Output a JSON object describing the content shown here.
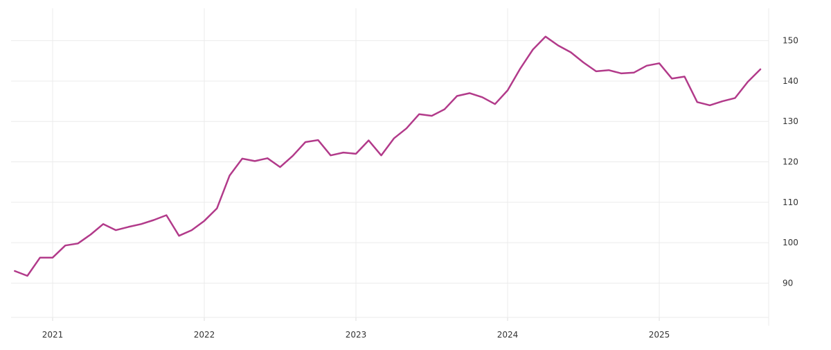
{
  "chart_data": {
    "type": "line",
    "title": "",
    "xlabel": "",
    "ylabel": "",
    "x_tick_labels": [
      "2021",
      "2022",
      "2023",
      "2024",
      "2025"
    ],
    "y_ticks": [
      90,
      100,
      110,
      120,
      130,
      140,
      150
    ],
    "y_axis_side": "right",
    "ylim": [
      81.5,
      158
    ],
    "xlim": [
      "2020-10",
      "2025-09"
    ],
    "grid": true,
    "colors": {
      "line": "#b23a8a",
      "grid": "#ebebeb",
      "axis": "#dddddd"
    },
    "series": [
      {
        "x": [
          "2020-10",
          "2020-11",
          "2020-12",
          "2021-01",
          "2021-02",
          "2021-03",
          "2021-04",
          "2021-05",
          "2021-06",
          "2021-07",
          "2021-08",
          "2021-09",
          "2021-10",
          "2021-11",
          "2021-12",
          "2022-01",
          "2022-02",
          "2022-03",
          "2022-04",
          "2022-05",
          "2022-06",
          "2022-07",
          "2022-08",
          "2022-09",
          "2022-10",
          "2022-11",
          "2022-12",
          "2023-01",
          "2023-02",
          "2023-03",
          "2023-04",
          "2023-05",
          "2023-06",
          "2023-07",
          "2023-08",
          "2023-09",
          "2023-10",
          "2023-11",
          "2023-12",
          "2024-01",
          "2024-02",
          "2024-03",
          "2024-04",
          "2024-05",
          "2024-06",
          "2024-07",
          "2024-08",
          "2024-09",
          "2024-10",
          "2024-11",
          "2024-12",
          "2025-01",
          "2025-02",
          "2025-03",
          "2025-04",
          "2025-05",
          "2025-06",
          "2025-07",
          "2025-08",
          "2025-09"
        ],
        "values": [
          93,
          91.8,
          96.3,
          96.3,
          99.3,
          99.8,
          102,
          104.6,
          103.1,
          103.9,
          104.6,
          105.6,
          106.8,
          101.7,
          103.1,
          105.4,
          108.5,
          116.6,
          120.8,
          120.2,
          120.9,
          118.7,
          121.5,
          124.9,
          125.4,
          121.6,
          122.3,
          122.0,
          125.3,
          121.6,
          125.8,
          128.3,
          131.8,
          131.4,
          133.0,
          136.3,
          137.0,
          136.0,
          134.3,
          137.7,
          143.1,
          147.8,
          151.0,
          148.8,
          147.1,
          144.6,
          142.4,
          142.7,
          141.9,
          142.1,
          143.8,
          144.4,
          140.6,
          141.1,
          134.8,
          134.0,
          135.0,
          135.8,
          139.8,
          142.9
        ]
      }
    ]
  }
}
